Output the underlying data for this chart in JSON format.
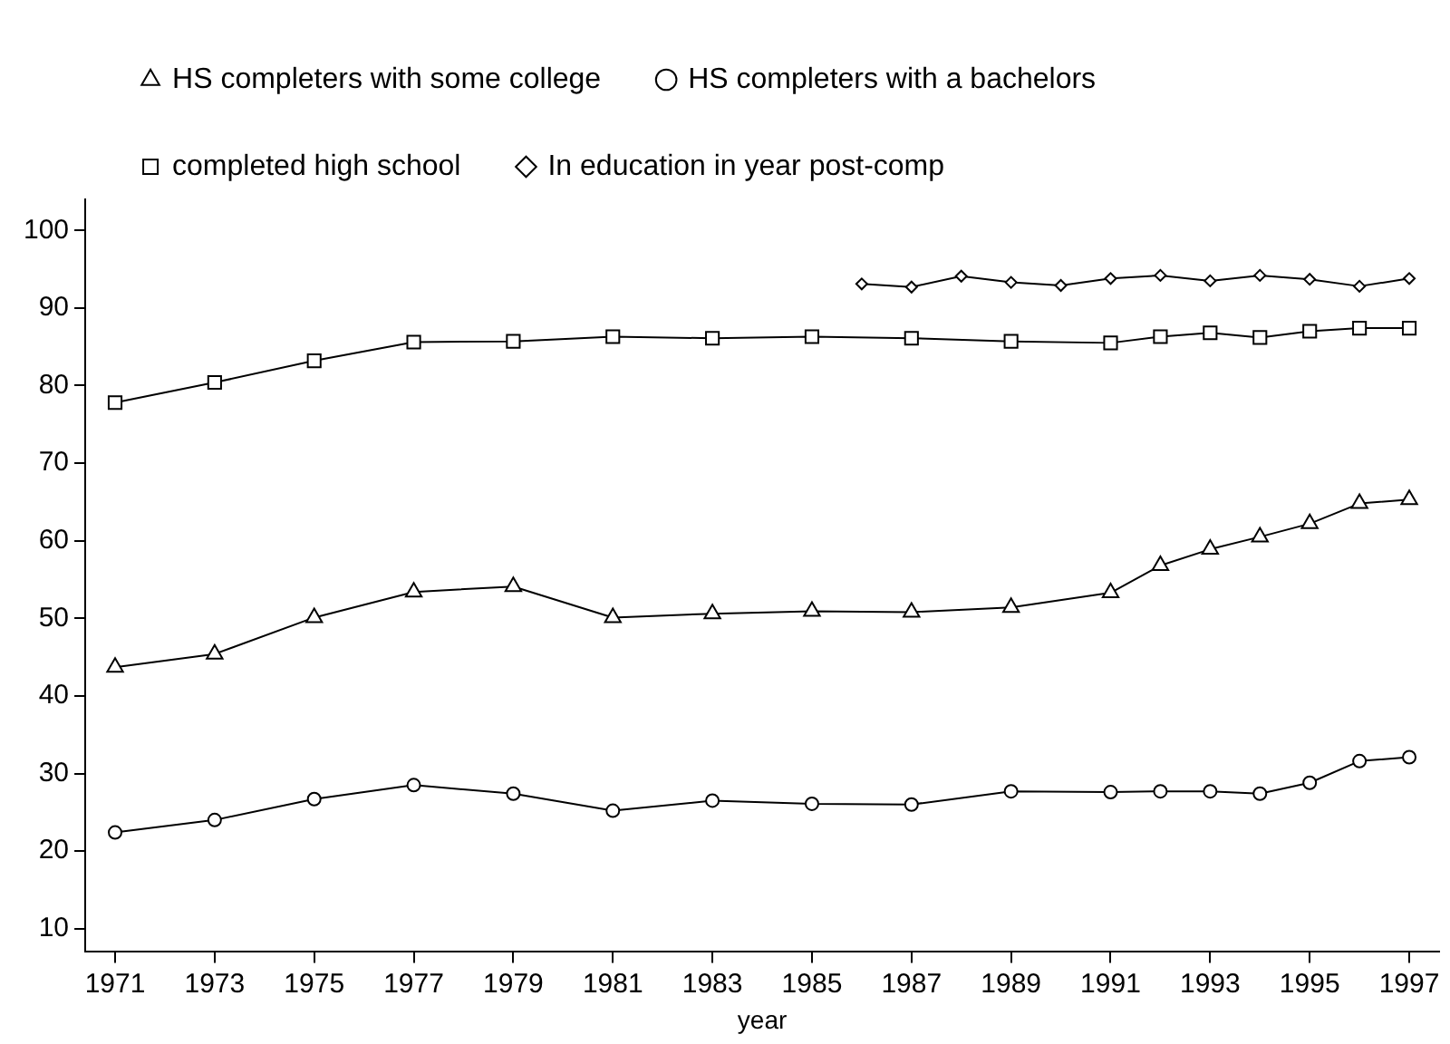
{
  "chart_data": {
    "type": "line",
    "xlabel": "year",
    "x": [
      1971,
      1973,
      1975,
      1977,
      1979,
      1981,
      1983,
      1985,
      1987,
      1989,
      1991,
      1992,
      1993,
      1994,
      1995,
      1996,
      1997
    ],
    "xlim": [
      1970.4,
      1997.6
    ],
    "xticks": [
      1971,
      1973,
      1975,
      1977,
      1979,
      1981,
      1983,
      1985,
      1987,
      1989,
      1991,
      1993,
      1995,
      1997
    ],
    "ylim": [
      7,
      104
    ],
    "yticks": [
      10,
      20,
      30,
      40,
      50,
      60,
      70,
      80,
      90,
      100
    ],
    "legend": "top",
    "line_style": "solid",
    "series": [
      {
        "name": "HS completers with some college",
        "color": "#000000",
        "marker": "triangle",
        "values": [
          43.7,
          45.4,
          50.1,
          53.4,
          54.1,
          50.1,
          50.6,
          50.9,
          50.8,
          51.4,
          53.3,
          56.8,
          58.9,
          60.5,
          62.2,
          64.8,
          65.3
        ]
      },
      {
        "name": "HS completers with a bachelors",
        "color": "#000000",
        "marker": "circle",
        "values": [
          22.4,
          24.0,
          26.7,
          28.5,
          27.4,
          25.2,
          26.5,
          26.1,
          26.0,
          27.7,
          27.6,
          27.7,
          27.7,
          27.4,
          28.8,
          31.6,
          32.1
        ]
      },
      {
        "name": "completed high school",
        "color": "#000000",
        "marker": "square",
        "values": [
          77.8,
          80.4,
          83.2,
          85.6,
          85.7,
          86.3,
          86.1,
          86.3,
          86.1,
          85.7,
          85.5,
          86.3,
          86.8,
          86.2,
          87.0,
          87.4,
          87.4
        ]
      },
      {
        "name": "In education in year post-comp",
        "color": "#000000",
        "marker": "diamond",
        "x": [
          1986,
          1987,
          1988,
          1989,
          1990,
          1991,
          1992,
          1993,
          1994,
          1995,
          1996,
          1997
        ],
        "values": [
          93.1,
          92.7,
          94.1,
          93.3,
          92.9,
          93.8,
          94.2,
          93.5,
          94.2,
          93.7,
          92.8,
          93.8
        ]
      }
    ]
  }
}
